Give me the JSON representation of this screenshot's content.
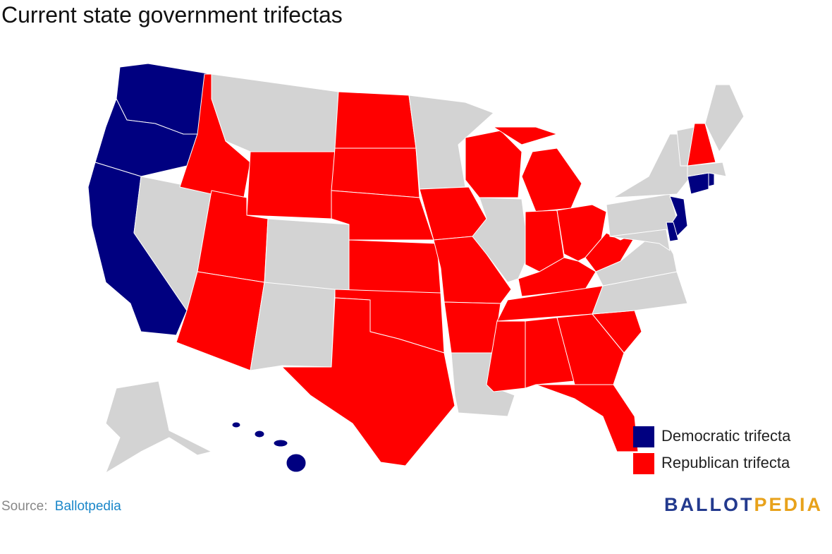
{
  "title": "Current state government trifectas",
  "legend": [
    {
      "label": "Democratic trifecta",
      "color": "#000080"
    },
    {
      "label": "Republican trifecta",
      "color": "#ff0000"
    }
  ],
  "source": {
    "label": "Source:",
    "link": "Ballotpedia"
  },
  "logo": {
    "first": "BALLOT",
    "second": "PEDIA"
  }
}
